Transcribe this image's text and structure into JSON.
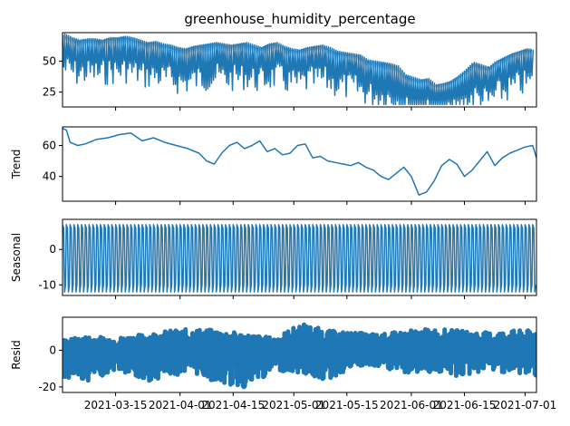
{
  "chart_data": [
    {
      "type": "line",
      "title": "greenhouse_humidity_percentage",
      "xlabel": "",
      "ylabel": "",
      "ylim": [
        13,
        73
      ],
      "yticks": [
        25,
        50
      ],
      "x_range": [
        "2021-03-01",
        "2021-07-04"
      ],
      "grid": false,
      "color": "#1f77b4",
      "series": [
        {
          "x": [
            "2021-03-01",
            "2021-03-03",
            "2021-03-05",
            "2021-03-07",
            "2021-03-09",
            "2021-03-11",
            "2021-03-13",
            "2021-03-15",
            "2021-03-17",
            "2021-03-19",
            "2021-03-21",
            "2021-03-23",
            "2021-03-25",
            "2021-03-27",
            "2021-03-29",
            "2021-03-31",
            "2021-04-02",
            "2021-04-04",
            "2021-04-06",
            "2021-04-08",
            "2021-04-10",
            "2021-04-12",
            "2021-04-14",
            "2021-04-16",
            "2021-04-18",
            "2021-04-20",
            "2021-04-22",
            "2021-04-24",
            "2021-04-26",
            "2021-04-28",
            "2021-04-30",
            "2021-05-02",
            "2021-05-04",
            "2021-05-06",
            "2021-05-08",
            "2021-05-10",
            "2021-05-12",
            "2021-05-14",
            "2021-05-16",
            "2021-05-18",
            "2021-05-20",
            "2021-05-22",
            "2021-05-24",
            "2021-05-26",
            "2021-05-28",
            "2021-05-30",
            "2021-06-01",
            "2021-06-03",
            "2021-06-05",
            "2021-06-07",
            "2021-06-09",
            "2021-06-11",
            "2021-06-13",
            "2021-06-15",
            "2021-06-17",
            "2021-06-19",
            "2021-06-21",
            "2021-06-23",
            "2021-06-25",
            "2021-06-27",
            "2021-06-29",
            "2021-07-01",
            "2021-07-03"
          ],
          "values": [
            71,
            68,
            66,
            67,
            67,
            66,
            68,
            68,
            69,
            68,
            66,
            64,
            65,
            63,
            62,
            60,
            59,
            61,
            62,
            63,
            64,
            63,
            62,
            63,
            64,
            62,
            60,
            63,
            64,
            61,
            59,
            58,
            60,
            61,
            62,
            60,
            57,
            56,
            55,
            54,
            50,
            49,
            48,
            47,
            45,
            38,
            36,
            34,
            35,
            30,
            31,
            33,
            37,
            42,
            48,
            46,
            44,
            49,
            52,
            55,
            57,
            59,
            58
          ]
        }
      ]
    },
    {
      "type": "line",
      "title": "",
      "xlabel": "",
      "ylabel": "Trend",
      "ylim": [
        24,
        72
      ],
      "yticks": [
        40,
        60
      ],
      "x_range": [
        "2021-03-01",
        "2021-07-04"
      ],
      "grid": false,
      "color": "#1f77b4",
      "series": [
        {
          "x": [
            "2021-03-01",
            "2021-03-02",
            "2021-03-03",
            "2021-03-05",
            "2021-03-07",
            "2021-03-10",
            "2021-03-13",
            "2021-03-16",
            "2021-03-19",
            "2021-03-22",
            "2021-03-25",
            "2021-03-28",
            "2021-03-31",
            "2021-04-03",
            "2021-04-06",
            "2021-04-08",
            "2021-04-10",
            "2021-04-12",
            "2021-04-14",
            "2021-04-16",
            "2021-04-18",
            "2021-04-20",
            "2021-04-22",
            "2021-04-24",
            "2021-04-26",
            "2021-04-28",
            "2021-04-30",
            "2021-05-02",
            "2021-05-04",
            "2021-05-06",
            "2021-05-08",
            "2021-05-10",
            "2021-05-12",
            "2021-05-14",
            "2021-05-16",
            "2021-05-18",
            "2021-05-20",
            "2021-05-22",
            "2021-05-24",
            "2021-05-26",
            "2021-05-28",
            "2021-05-30",
            "2021-06-01",
            "2021-06-03",
            "2021-06-05",
            "2021-06-07",
            "2021-06-09",
            "2021-06-11",
            "2021-06-13",
            "2021-06-15",
            "2021-06-17",
            "2021-06-19",
            "2021-06-21",
            "2021-06-23",
            "2021-06-25",
            "2021-06-27",
            "2021-06-29",
            "2021-07-01",
            "2021-07-03",
            "2021-07-04"
          ],
          "values": [
            71,
            70,
            62,
            60,
            61,
            64,
            65,
            67,
            68,
            63,
            65,
            62,
            60,
            58,
            55,
            50,
            48,
            55,
            60,
            62,
            58,
            60,
            63,
            56,
            58,
            54,
            55,
            60,
            61,
            52,
            53,
            50,
            49,
            48,
            47,
            49,
            46,
            44,
            40,
            38,
            42,
            46,
            40,
            28,
            30,
            37,
            47,
            51,
            48,
            40,
            44,
            50,
            56,
            47,
            52,
            55,
            57,
            59,
            60,
            52
          ]
        }
      ]
    },
    {
      "type": "line",
      "title": "",
      "xlabel": "",
      "ylabel": "Seasonal",
      "ylim": [
        -13,
        8.5
      ],
      "yticks": [
        -10,
        0
      ],
      "x_range": [
        "2021-03-01",
        "2021-07-04"
      ],
      "grid": false,
      "color": "#1f77b4",
      "series": [
        {
          "name": "",
          "amplitude_max": 7,
          "amplitude_min": -12,
          "cycles": 125
        }
      ]
    },
    {
      "type": "line",
      "title": "",
      "xlabel": "",
      "ylabel": "Resid",
      "ylim": [
        -23,
        18
      ],
      "yticks": [
        -20,
        0
      ],
      "xticks": [
        "2021-03-15",
        "2021-04-01",
        "2021-04-15",
        "2021-05-01",
        "2021-05-15",
        "2021-06-01",
        "2021-06-15",
        "2021-07-01"
      ],
      "x_range": [
        "2021-03-01",
        "2021-07-04"
      ],
      "grid": false,
      "color": "#1f77b4",
      "series": [
        {
          "x": [
            "2021-03-01",
            "2021-03-08",
            "2021-03-15",
            "2021-03-22",
            "2021-03-29",
            "2021-04-05",
            "2021-04-12",
            "2021-04-19",
            "2021-04-26",
            "2021-05-03",
            "2021-05-10",
            "2021-05-17",
            "2021-05-24",
            "2021-05-31",
            "2021-06-07",
            "2021-06-14",
            "2021-06-21",
            "2021-06-28",
            "2021-07-04"
          ],
          "upper": [
            7,
            9,
            8,
            10,
            12,
            13,
            12,
            10,
            8,
            16,
            12,
            11,
            10,
            12,
            13,
            12,
            11,
            12,
            12
          ],
          "lower": [
            -16,
            -18,
            -12,
            -19,
            -15,
            -14,
            -20,
            -22,
            -12,
            -14,
            -18,
            -10,
            -11,
            -14,
            -13,
            -16,
            -12,
            -14,
            -15
          ]
        }
      ]
    }
  ]
}
